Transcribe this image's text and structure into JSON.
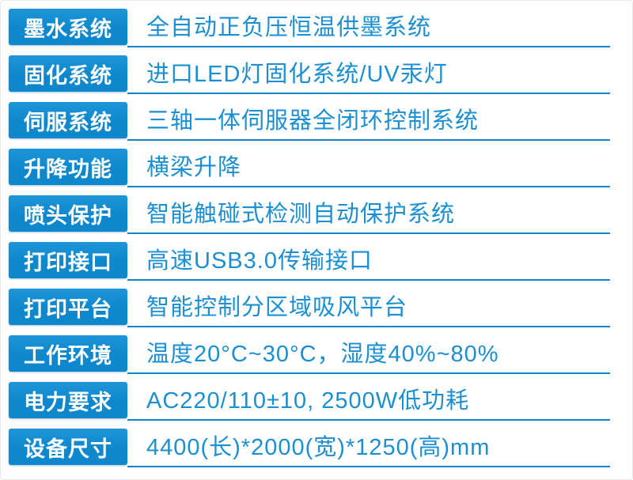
{
  "title": "printer-specification-table",
  "colors": {
    "label_bg": "#0E87CC",
    "label_bg_light": "#1E95D8",
    "label_text": "#FFFFFF",
    "value_text": "#1B8FD2",
    "underline": "#1185CB",
    "page_bg": "#FFFFFF",
    "page_border": "#E9E9E9"
  },
  "table": {
    "rows": [
      {
        "label": "墨水系统",
        "value": "全自动正负压恒温供墨系统"
      },
      {
        "label": "固化系统",
        "value": "进口LED灯固化系统/UV汞灯"
      },
      {
        "label": "伺服系统",
        "value": "三轴一体伺服器全闭环控制系统"
      },
      {
        "label": "升降功能",
        "value": "横梁升降"
      },
      {
        "label": "喷头保护",
        "value": "智能触碰式检测自动保护系统"
      },
      {
        "label": "打印接口",
        "value": "高速USB3.0传输接口"
      },
      {
        "label": "打印平台",
        "value": "智能控制分区域吸风平台"
      },
      {
        "label": "工作环境",
        "value": "温度20°C~30°C，湿度40%~80%"
      },
      {
        "label": "电力要求",
        "value": "AC220/110±10, 2500W低功耗"
      },
      {
        "label": "设备尺寸",
        "value": "4400(长)*2000(宽)*1250(高)mm"
      }
    ]
  }
}
